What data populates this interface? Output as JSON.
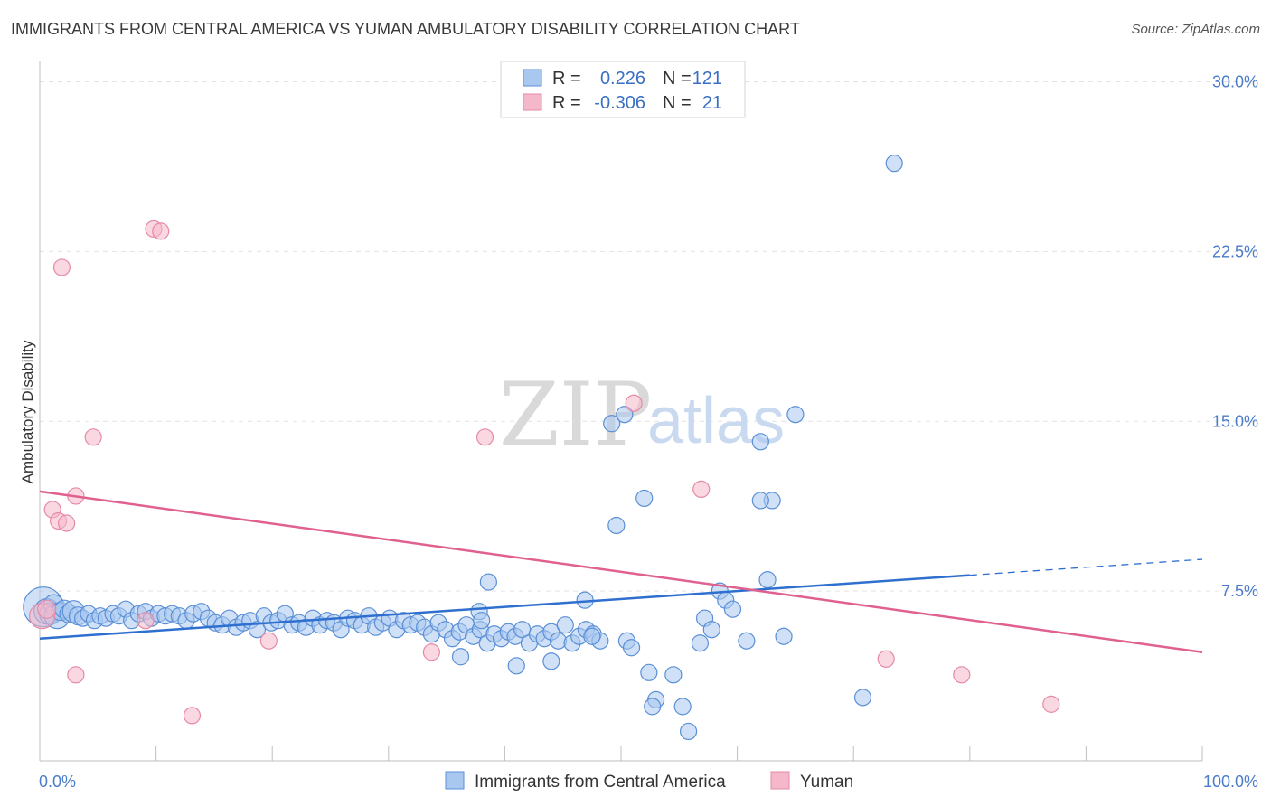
{
  "header": {
    "title": "IMMIGRANTS FROM CENTRAL AMERICA VS YUMAN AMBULATORY DISABILITY CORRELATION CHART",
    "source": "Source: ZipAtlas.com"
  },
  "watermark": {
    "zip": "ZIP",
    "atlas": "atlas"
  },
  "legend": {
    "r_label": "R =",
    "n_label": "N =",
    "rows": [
      {
        "r": "0.226",
        "n": "121",
        "color": "#a9c8f0"
      },
      {
        "r": "-0.306",
        "n": "21",
        "color": "#f5b8cb"
      }
    ]
  },
  "bottom_legend": [
    {
      "label": "Immigrants from Central America",
      "color": "#a9c8f0"
    },
    {
      "label": "Yuman",
      "color": "#f5b8cb"
    }
  ],
  "colors": {
    "blue_fill": "#a9c8f0",
    "blue_stroke": "#5a8fd6",
    "blue_line": "#2f6fcf",
    "pink_fill": "#f5b8cb",
    "pink_stroke": "#e58aa6",
    "pink_line": "#e0608f",
    "grid": "#e3e3e3",
    "tick_text": "#4a7cc9"
  },
  "chart_data": {
    "type": "scatter",
    "title": "IMMIGRANTS FROM CENTRAL AMERICA VS YUMAN AMBULATORY DISABILITY CORRELATION CHART",
    "xlabel": "",
    "ylabel": "Ambulatory Disability",
    "xlim": [
      0,
      100
    ],
    "ylim": [
      0,
      30.5
    ],
    "x_tick_labels": [
      {
        "value": 0,
        "label": "0.0%"
      },
      {
        "value": 100,
        "label": "100.0%"
      }
    ],
    "x_minor_ticks": [
      10,
      20,
      30,
      40,
      50,
      60,
      70,
      80,
      90,
      100
    ],
    "y_ticks": [
      {
        "value": 7.5,
        "label": "7.5%"
      },
      {
        "value": 15.0,
        "label": "15.0%"
      },
      {
        "value": 22.5,
        "label": "22.5%"
      },
      {
        "value": 30.0,
        "label": "30.0%"
      }
    ],
    "series": [
      {
        "name": "Immigrants from Central America",
        "R": 0.226,
        "N": 121,
        "trend": {
          "x0": 0,
          "y0": 5.4,
          "x1": 80,
          "y1": 8.2,
          "dash_to_x": 100,
          "dash_to_y": 8.9
        },
        "points": [
          [
            0.3,
            6.8,
            22
          ],
          [
            0.6,
            6.6,
            14
          ],
          [
            0.9,
            6.5,
            12
          ],
          [
            1.2,
            6.9,
            11
          ],
          [
            1.5,
            6.4,
            14
          ],
          [
            1.8,
            6.6,
            10
          ],
          [
            2.1,
            6.7,
            10
          ],
          [
            2.5,
            6.5,
            10
          ],
          [
            2.9,
            6.6,
            12
          ],
          [
            3.3,
            6.4,
            10
          ],
          [
            3.7,
            6.3,
            9
          ],
          [
            4.2,
            6.5,
            9
          ],
          [
            4.7,
            6.2,
            9
          ],
          [
            5.2,
            6.4,
            9
          ],
          [
            5.7,
            6.3,
            9
          ],
          [
            6.3,
            6.5,
            9
          ],
          [
            6.8,
            6.4,
            9
          ],
          [
            7.4,
            6.7,
            9
          ],
          [
            7.9,
            6.2,
            9
          ],
          [
            8.5,
            6.5,
            9
          ],
          [
            9.1,
            6.6,
            9
          ],
          [
            9.6,
            6.3,
            9
          ],
          [
            10.2,
            6.5,
            9
          ],
          [
            10.8,
            6.4,
            9
          ],
          [
            11.4,
            6.5,
            9
          ],
          [
            12.0,
            6.4,
            9
          ],
          [
            12.6,
            6.2,
            9
          ],
          [
            13.2,
            6.5,
            9
          ],
          [
            13.9,
            6.6,
            9
          ],
          [
            14.5,
            6.3,
            9
          ],
          [
            15.1,
            6.1,
            9
          ],
          [
            15.7,
            6.0,
            9
          ],
          [
            16.3,
            6.3,
            9
          ],
          [
            16.9,
            5.9,
            9
          ],
          [
            17.5,
            6.1,
            9
          ],
          [
            18.1,
            6.2,
            9
          ],
          [
            18.7,
            5.8,
            9
          ],
          [
            19.3,
            6.4,
            9
          ],
          [
            19.9,
            6.1,
            9
          ],
          [
            20.5,
            6.2,
            9
          ],
          [
            21.1,
            6.5,
            9
          ],
          [
            21.7,
            6.0,
            9
          ],
          [
            22.3,
            6.1,
            9
          ],
          [
            22.9,
            5.9,
            9
          ],
          [
            23.5,
            6.3,
            9
          ],
          [
            24.1,
            6.0,
            9
          ],
          [
            24.7,
            6.2,
            9
          ],
          [
            25.3,
            6.1,
            9
          ],
          [
            25.9,
            5.8,
            9
          ],
          [
            26.5,
            6.3,
            9
          ],
          [
            27.1,
            6.2,
            9
          ],
          [
            27.7,
            6.0,
            9
          ],
          [
            28.3,
            6.4,
            9
          ],
          [
            28.9,
            5.9,
            9
          ],
          [
            29.5,
            6.1,
            9
          ],
          [
            30.1,
            6.3,
            9
          ],
          [
            30.7,
            5.8,
            9
          ],
          [
            31.3,
            6.2,
            9
          ],
          [
            31.9,
            6.0,
            9
          ],
          [
            32.5,
            6.1,
            9
          ],
          [
            33.1,
            5.9,
            9
          ],
          [
            33.7,
            5.6,
            9
          ],
          [
            34.3,
            6.1,
            9
          ],
          [
            34.9,
            5.8,
            9
          ],
          [
            35.5,
            5.4,
            9
          ],
          [
            36.1,
            5.7,
            9
          ],
          [
            36.7,
            6.0,
            9
          ],
          [
            37.3,
            5.5,
            9
          ],
          [
            37.9,
            5.8,
            9
          ],
          [
            38.5,
            5.2,
            9
          ],
          [
            39.1,
            5.6,
            9
          ],
          [
            39.7,
            5.4,
            9
          ],
          [
            40.3,
            5.7,
            9
          ],
          [
            40.9,
            5.5,
            9
          ],
          [
            41.5,
            5.8,
            9
          ],
          [
            42.1,
            5.2,
            9
          ],
          [
            42.8,
            5.6,
            9
          ],
          [
            43.4,
            5.4,
            9
          ],
          [
            44.0,
            5.7,
            9
          ],
          [
            44.6,
            5.3,
            9
          ],
          [
            45.2,
            6.0,
            9
          ],
          [
            45.8,
            5.2,
            9
          ],
          [
            46.4,
            5.5,
            9
          ],
          [
            47.0,
            5.8,
            9
          ],
          [
            47.6,
            5.6,
            9
          ],
          [
            48.2,
            5.3,
            9
          ],
          [
            37.8,
            6.6,
            9
          ],
          [
            38.6,
            7.9,
            9
          ],
          [
            38.0,
            6.2,
            9
          ],
          [
            36.2,
            4.6,
            9
          ],
          [
            41.0,
            4.2,
            9
          ],
          [
            46.9,
            7.1,
            9
          ],
          [
            50.5,
            5.3,
            9
          ],
          [
            50.9,
            5.0,
            9
          ],
          [
            47.5,
            5.5,
            9
          ],
          [
            52.4,
            3.9,
            9
          ],
          [
            53.0,
            2.7,
            9
          ],
          [
            52.7,
            2.4,
            9
          ],
          [
            54.5,
            3.8,
            9
          ],
          [
            55.3,
            2.4,
            9
          ],
          [
            55.8,
            1.3,
            9
          ],
          [
            56.8,
            5.2,
            9
          ],
          [
            57.2,
            6.3,
            9
          ],
          [
            57.8,
            5.8,
            9
          ],
          [
            58.5,
            7.5,
            9
          ],
          [
            59.0,
            7.1,
            9
          ],
          [
            59.6,
            6.7,
            9
          ],
          [
            60.8,
            5.3,
            9
          ],
          [
            62.0,
            14.1,
            9
          ],
          [
            64.0,
            5.5,
            9
          ],
          [
            65.0,
            15.3,
            9
          ],
          [
            63.0,
            11.5,
            9
          ],
          [
            62.6,
            8.0,
            9
          ],
          [
            62.0,
            11.5,
            9
          ],
          [
            49.2,
            14.9,
            9
          ],
          [
            50.3,
            15.3,
            9
          ],
          [
            49.6,
            10.4,
            9
          ],
          [
            52.0,
            11.6,
            9
          ],
          [
            70.8,
            2.8,
            9
          ],
          [
            73.5,
            26.4,
            9
          ],
          [
            44.0,
            4.4,
            9
          ]
        ]
      },
      {
        "name": "Yuman",
        "R": -0.306,
        "N": 21,
        "trend": {
          "x0": 0,
          "y0": 11.9,
          "x1": 100,
          "y1": 4.8
        },
        "points": [
          [
            0.2,
            6.4,
            14
          ],
          [
            1.1,
            11.1,
            9
          ],
          [
            1.6,
            10.6,
            9
          ],
          [
            2.3,
            10.5,
            9
          ],
          [
            1.9,
            21.8,
            9
          ],
          [
            3.1,
            11.7,
            9
          ],
          [
            3.1,
            3.8,
            9
          ],
          [
            4.6,
            14.3,
            9
          ],
          [
            9.8,
            23.5,
            9
          ],
          [
            10.4,
            23.4,
            9
          ],
          [
            9.1,
            6.2,
            9
          ],
          [
            13.1,
            2.0,
            9
          ],
          [
            19.7,
            5.3,
            9
          ],
          [
            33.7,
            4.8,
            9
          ],
          [
            38.3,
            14.3,
            9
          ],
          [
            51.1,
            15.8,
            9
          ],
          [
            56.9,
            12.0,
            9
          ],
          [
            72.8,
            4.5,
            9
          ],
          [
            79.3,
            3.8,
            9
          ],
          [
            87.0,
            2.5,
            9
          ],
          [
            0.6,
            6.7,
            10
          ]
        ]
      }
    ]
  }
}
